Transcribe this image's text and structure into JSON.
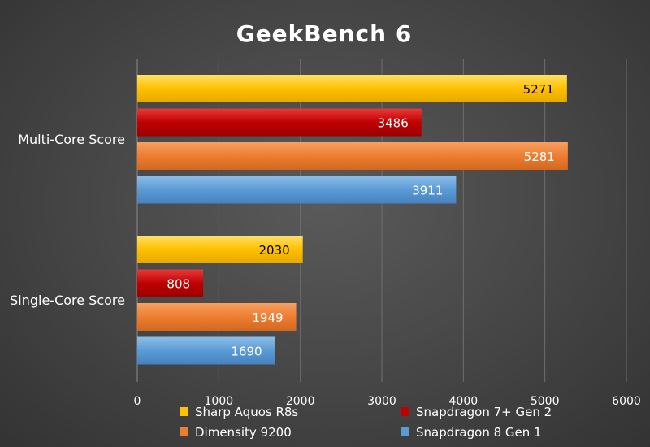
{
  "chart_data": {
    "type": "bar",
    "orientation": "horizontal",
    "title": "GeekBench 6",
    "categories": [
      "Multi-Core Score",
      "Single-Core Score"
    ],
    "series": [
      {
        "name": "Sharp Aquos R8s",
        "color": "#FFC000",
        "values": [
          5271,
          2030
        ]
      },
      {
        "name": "Snapdragon 7+ Gen 2",
        "color": "#C00000",
        "values": [
          3486,
          808
        ]
      },
      {
        "name": "Dimensity 9200",
        "color": "#ED7D31",
        "values": [
          5281,
          1949
        ]
      },
      {
        "name": "Snapdragon 8 Gen 1",
        "color": "#5B9BD5",
        "values": [
          3911,
          1690
        ]
      }
    ],
    "xlim": [
      0,
      6000
    ],
    "xticks": [
      0,
      1000,
      2000,
      3000,
      4000,
      5000,
      6000
    ],
    "grid": true,
    "legend_position": "bottom"
  }
}
